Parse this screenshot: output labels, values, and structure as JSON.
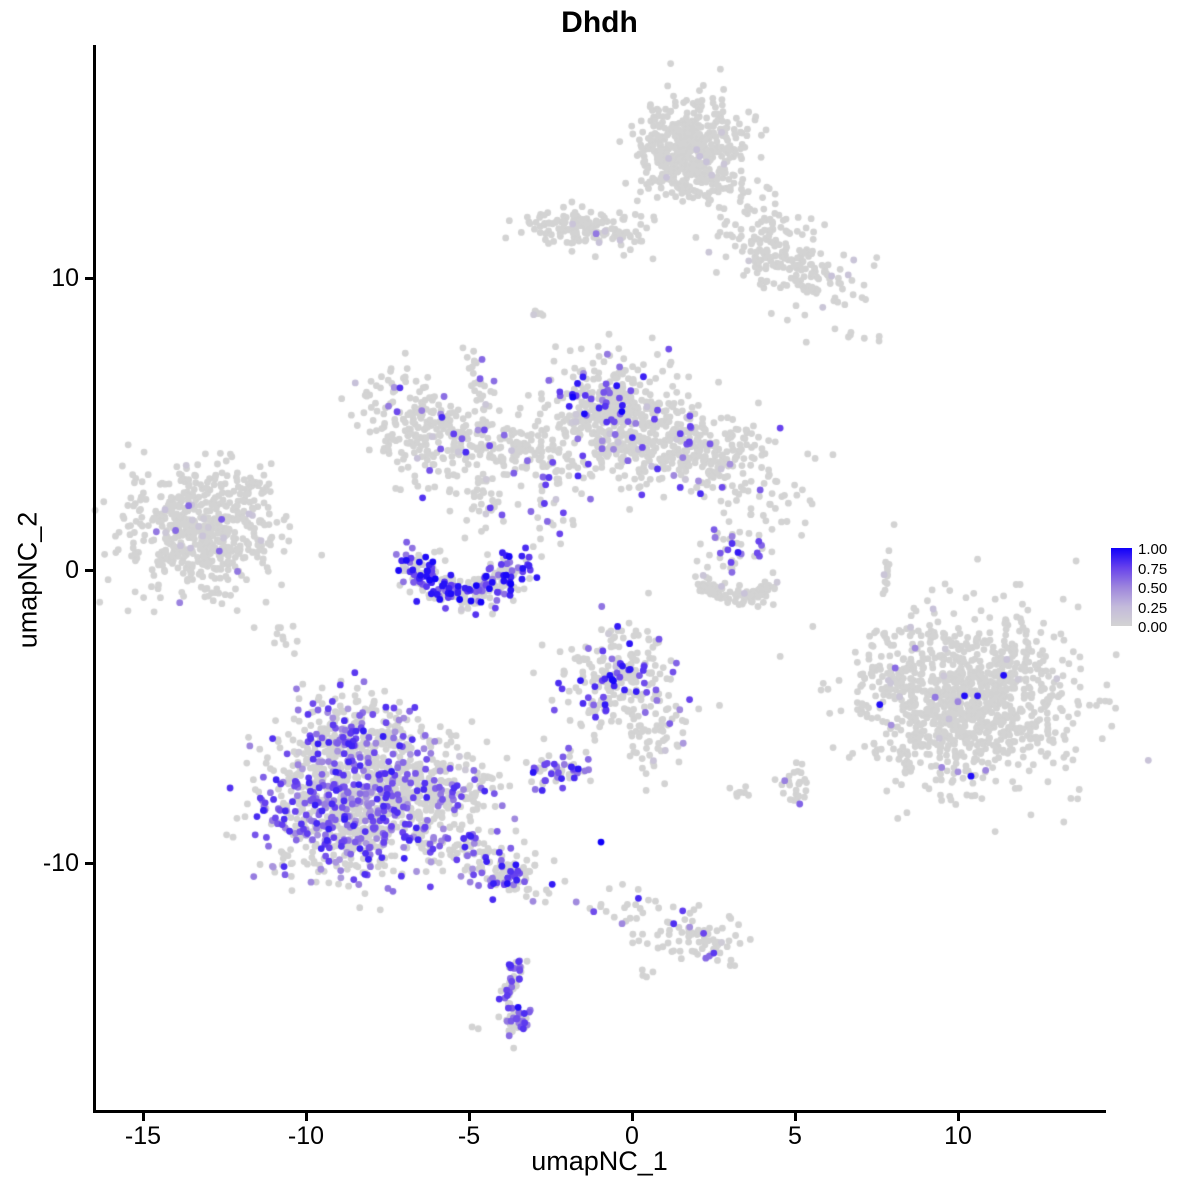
{
  "chart_data": {
    "type": "scatter",
    "title": "Dhdh",
    "xlabel": "umapNC_1",
    "ylabel": "umapNC_2",
    "xlim": [
      -16.5,
      14.5
    ],
    "ylim": [
      -18.4,
      18.0
    ],
    "grid": false,
    "xticks": [
      -15,
      -10,
      -5,
      0,
      5,
      10
    ],
    "yticks": [
      10,
      0,
      -10
    ],
    "legend": {
      "position": "right",
      "labels": [
        "1.00",
        "0.75",
        "0.50",
        "0.25",
        "0.00"
      ],
      "values": [
        1.0,
        0.75,
        0.5,
        0.25,
        0.0
      ],
      "low_color": "#d3d3d3",
      "high_color": "#0000ff"
    },
    "point_color_low": "#d3d3d3",
    "point_color_high": "#0000ff",
    "point_radius_px": 3.4,
    "clusters": [
      {
        "name": "top-main",
        "cx": 1.85,
        "cy": 14.3,
        "sx": 0.8,
        "sy": 0.85,
        "n": 520,
        "frac": 0
      },
      {
        "name": "top-band",
        "cx": -1.35,
        "cy": 11.65,
        "sx": 0.95,
        "sy": 0.33,
        "rot": -0.08,
        "n": 150,
        "frac": 0
      },
      {
        "name": "topright-diag",
        "cx": 4.8,
        "cy": 10.8,
        "sx": 1.45,
        "sy": 0.6,
        "rot": -0.75,
        "n": 230,
        "frac": 0
      },
      {
        "name": "speck-left-top",
        "cx": -2.95,
        "cy": 8.75,
        "sx": 0.18,
        "sy": 0.1,
        "rot": 0.5,
        "n": 6,
        "frac": 0
      },
      {
        "name": "speck-right-top",
        "cx": 6.7,
        "cy": 8.1,
        "sx": 0.07,
        "sy": 0.12,
        "n": 3,
        "frac": 0
      },
      {
        "name": "wing-left",
        "cx": -6.6,
        "cy": 4.8,
        "sx": 0.75,
        "sy": 1.05,
        "rot": 0.5,
        "n": 210,
        "frac": 0.07,
        "vmin": 0.4,
        "vmax": 0.85
      },
      {
        "name": "wing-right",
        "cx": -3.9,
        "cy": 4.3,
        "sx": 1.05,
        "sy": 0.5,
        "rot": -0.15,
        "n": 150,
        "frac": 0.035,
        "vmin": 0.4,
        "vmax": 0.8
      },
      {
        "name": "chain-upper",
        "cx": -4.6,
        "cy": 6.3,
        "sx": 0.22,
        "sy": 0.75,
        "rot": 0.25,
        "n": 30,
        "frac": 0.03,
        "vmin": 0.5,
        "vmax": 0.7
      },
      {
        "name": "chain-lower",
        "cx": -4.65,
        "cy": 2.6,
        "sx": 0.45,
        "sy": 0.8,
        "n": 50,
        "frac": 0.06,
        "vmin": 0.5,
        "vmax": 0.8
      },
      {
        "name": "mid-dots",
        "cx": -2.55,
        "cy": 2.1,
        "sx": 0.35,
        "sy": 0.75,
        "n": 26,
        "frac": 0.2,
        "vmin": 0.5,
        "vmax": 0.85
      },
      {
        "name": "crescent-main",
        "shape": "arc",
        "cx": -5.1,
        "cy": 0.55,
        "rx": 1.6,
        "ry": 1.3,
        "t0": 3.35,
        "t1": 6.1,
        "jit": 0.32,
        "n": 280,
        "frac": 0.4,
        "vmin": 0.5,
        "vmax": 1.0
      },
      {
        "name": "centertop-main",
        "cx": -0.6,
        "cy": 5.1,
        "sx": 1.0,
        "sy": 1.1,
        "n": 430,
        "frac": 0.05,
        "vmin": 0.45,
        "vmax": 0.9
      },
      {
        "name": "centertop-hot",
        "cx": -0.95,
        "cy": 5.95,
        "sx": 0.55,
        "sy": 0.5,
        "n": 34,
        "frac": 0.8,
        "vmin": 0.5,
        "vmax": 1.0
      },
      {
        "name": "right-lobe",
        "cx": 1.9,
        "cy": 4.2,
        "sx": 1.1,
        "sy": 0.75,
        "rot": -0.2,
        "n": 300,
        "frac": 0.05,
        "vmin": 0.4,
        "vmax": 0.85
      },
      {
        "name": "lobe-tail",
        "cx": 4.0,
        "cy": 2.6,
        "sx": 0.75,
        "sy": 0.65,
        "n": 40,
        "frac": 0.03,
        "vmin": 0.4,
        "vmax": 0.7
      },
      {
        "name": "midright-upper",
        "cx": 3.1,
        "cy": 0.8,
        "sx": 0.6,
        "sy": 0.45,
        "rot": 0.55,
        "n": 42,
        "frac": 0.3,
        "vmin": 0.5,
        "vmax": 0.9
      },
      {
        "name": "midright-smile",
        "shape": "arc",
        "cx": 3.25,
        "cy": -0.3,
        "rx": 1.05,
        "ry": 0.6,
        "t0": 3.4,
        "t1": 6.05,
        "jit": 0.17,
        "n": 85,
        "frac": 0.01,
        "vmin": 0.4,
        "vmax": 0.6
      },
      {
        "name": "dash-right",
        "cx": 7.85,
        "cy": 0.15,
        "sx": 0.07,
        "sy": 0.52,
        "rot": -0.12,
        "n": 13,
        "frac": 0
      },
      {
        "name": "left-main",
        "cx": -13.25,
        "cy": 1.3,
        "sx": 1.15,
        "sy": 1.05,
        "n": 560,
        "frac": 0.004,
        "vmin": 0.5,
        "vmax": 0.7
      },
      {
        "name": "left-tail",
        "cx": -11.65,
        "cy": 2.85,
        "sx": 0.3,
        "sy": 0.45,
        "rot": -0.5,
        "n": 28,
        "frac": 0
      },
      {
        "name": "left-blob-small",
        "cx": -10.6,
        "cy": -2.25,
        "sx": 0.22,
        "sy": 0.28,
        "n": 10,
        "frac": 0
      },
      {
        "name": "bottomleft-core",
        "cx": -8.6,
        "cy": -8.2,
        "sx": 1.35,
        "sy": 1.2,
        "n": 850,
        "frac": 0.33,
        "vmin": 0.4,
        "vmax": 0.9
      },
      {
        "name": "bottomleft-top",
        "cx": -8.6,
        "cy": -5.6,
        "sx": 0.95,
        "sy": 0.75,
        "n": 240,
        "frac": 0.3,
        "vmin": 0.4,
        "vmax": 0.9
      },
      {
        "name": "bottomleft-right",
        "cx": -5.95,
        "cy": -7.5,
        "sx": 0.95,
        "sy": 0.85,
        "n": 240,
        "frac": 0.25,
        "vmin": 0.4,
        "vmax": 0.85
      },
      {
        "name": "bottomleft-tail",
        "cx": -4.5,
        "cy": -10.0,
        "sx": 1.05,
        "sy": 0.45,
        "rot": -0.5,
        "n": 130,
        "frac": 0.3,
        "vmin": 0.4,
        "vmax": 0.9
      },
      {
        "name": "bottomleft-tail-tip",
        "cx": -3.85,
        "cy": -10.5,
        "sx": 0.28,
        "sy": 0.22,
        "n": 16,
        "frac": 0.75,
        "vmin": 0.5,
        "vmax": 1.0
      },
      {
        "name": "chain-bottom",
        "cx": 0.5,
        "cy": -11.9,
        "sx": 1.25,
        "sy": 0.5,
        "rot": -0.4,
        "n": 55,
        "frac": 0.12,
        "vmin": 0.45,
        "vmax": 0.85
      },
      {
        "name": "bottomright-small",
        "cx": 2.3,
        "cy": -12.8,
        "sx": 0.5,
        "sy": 0.4,
        "n": 50,
        "frac": 0.06,
        "vmin": 0.45,
        "vmax": 0.8
      },
      {
        "name": "crescent-bottom",
        "shape": "arc",
        "cx": -3.25,
        "cy": -14.45,
        "rx": 0.5,
        "ry": 1.05,
        "t0": 1.9,
        "t1": 4.6,
        "jit": 0.16,
        "n": 80,
        "frac": 0.55,
        "vmin": 0.5,
        "vmax": 0.95
      },
      {
        "name": "crescent-bottom-tail",
        "cx": -3.7,
        "cy": -15.55,
        "sx": 0.18,
        "sy": 0.35,
        "n": 10,
        "frac": 0.1,
        "vmin": 0.4,
        "vmax": 0.6
      },
      {
        "name": "crescent-bottom-dot",
        "cx": -4.85,
        "cy": -15.65,
        "sx": 0.06,
        "sy": 0.06,
        "n": 2,
        "frac": 0
      },
      {
        "name": "right-main",
        "cx": 10.3,
        "cy": -4.45,
        "sx": 1.6,
        "sy": 1.45,
        "n": 1050,
        "frac": 0.002,
        "vmin": 0.4,
        "vmax": 0.7
      },
      {
        "name": "right-nw-tail",
        "cx": 8.0,
        "cy": -3.3,
        "sx": 0.45,
        "sy": 0.8,
        "rot": 0.35,
        "n": 40,
        "frac": 0
      },
      {
        "name": "small-cluster-5-7",
        "cx": 5.05,
        "cy": -7.3,
        "sx": 0.28,
        "sy": 0.33,
        "n": 26,
        "frac": 0.1,
        "vmin": 0.4,
        "vmax": 0.7
      },
      {
        "name": "speck-3-7",
        "cx": 3.35,
        "cy": -7.6,
        "sx": 0.22,
        "sy": 0.15,
        "n": 8,
        "frac": 0
      },
      {
        "name": "centerbottom",
        "cx": -0.45,
        "cy": -3.7,
        "sx": 0.85,
        "sy": 0.9,
        "n": 230,
        "frac": 0.18,
        "vmin": 0.55,
        "vmax": 1.0
      },
      {
        "name": "centerbottom-ext",
        "cx": 0.85,
        "cy": -5.5,
        "sx": 0.5,
        "sy": 0.85,
        "rot": -0.35,
        "n": 55,
        "frac": 0.07,
        "vmin": 0.4,
        "vmax": 0.8
      },
      {
        "name": "small-purple-mid",
        "cx": -2.35,
        "cy": -6.8,
        "sx": 0.55,
        "sy": 0.28,
        "n": 55,
        "frac": 0.45,
        "vmin": 0.5,
        "vmax": 0.95
      },
      {
        "name": "speck-pair-bottom",
        "cx": 0.45,
        "cy": -13.9,
        "sx": 0.12,
        "sy": 0.12,
        "n": 4,
        "frac": 0
      }
    ],
    "extra_points": [
      {
        "x": -1.1,
        "y": 11.5,
        "v": 0.55
      },
      {
        "x": -4.6,
        "y": 7.2,
        "v": 0.6
      },
      {
        "x": -13.6,
        "y": 2.2,
        "v": 0.6
      },
      {
        "x": -14.0,
        "y": 1.35,
        "v": 0.6
      },
      {
        "x": -12.1,
        "y": -0.05,
        "v": 0.55
      },
      {
        "x": -3.1,
        "y": 2.0,
        "v": 0.6
      },
      {
        "x": -0.95,
        "y": -9.3,
        "v": 1.0
      },
      {
        "x": 7.6,
        "y": -4.6,
        "v": 0.95
      },
      {
        "x": 9.3,
        "y": -4.35,
        "v": 0.55
      },
      {
        "x": 10.2,
        "y": -4.3,
        "v": 0.95
      },
      {
        "x": 10.6,
        "y": -4.3,
        "v": 0.9
      },
      {
        "x": 10.0,
        "y": -4.5,
        "v": 0.5
      },
      {
        "x": 7.95,
        "y": -5.3,
        "v": 0.45
      },
      {
        "x": 11.4,
        "y": -3.6,
        "v": 0.95
      },
      {
        "x": 9.5,
        "y": -6.75,
        "v": 0.5
      },
      {
        "x": 10.0,
        "y": -6.9,
        "v": 0.45
      },
      {
        "x": 10.4,
        "y": -7.05,
        "v": 0.95
      },
      {
        "x": 10.85,
        "y": -6.85,
        "v": 0.5
      }
    ]
  }
}
